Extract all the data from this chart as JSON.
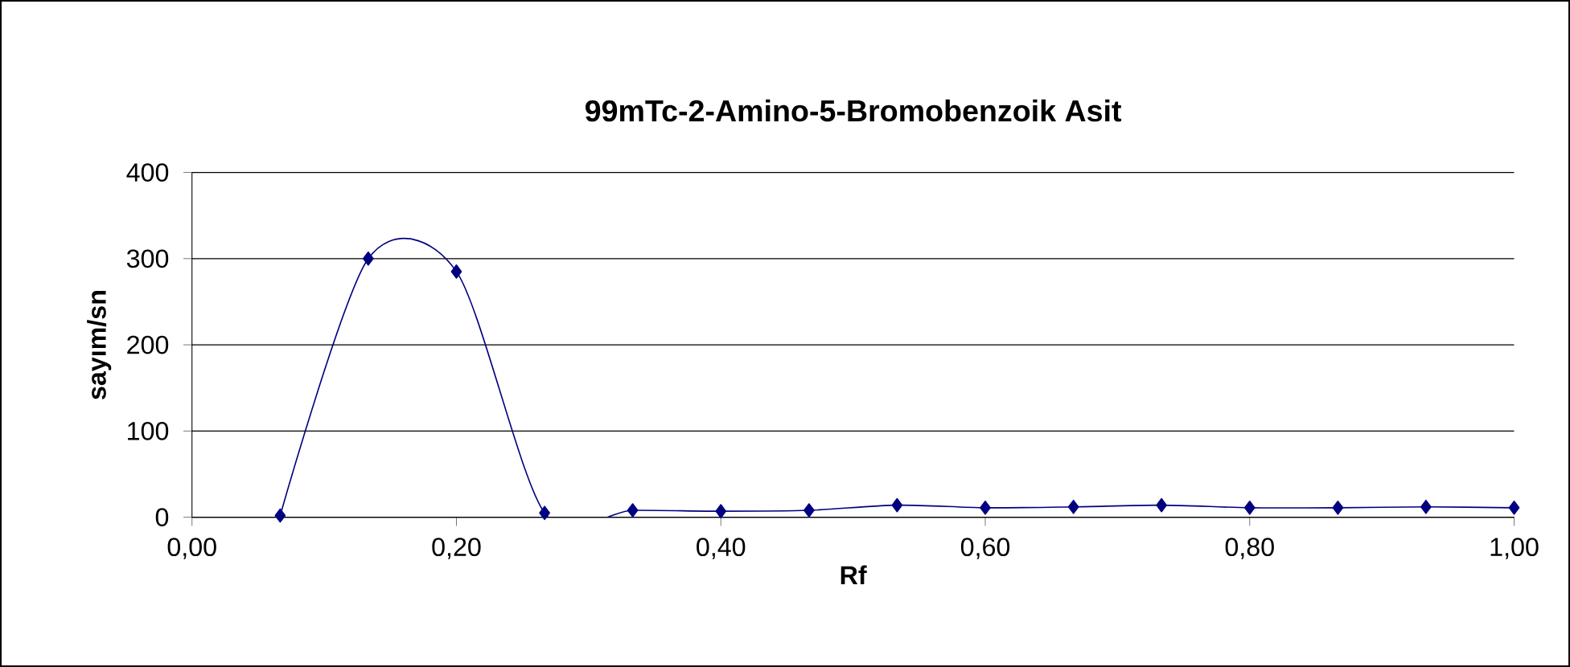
{
  "chart_data": {
    "type": "line",
    "title": "99mTc-2-Amino-5-Bromobenzoik Asit",
    "xlabel": "Rf",
    "ylabel": "sayım/sn",
    "x": [
      0.0667,
      0.1333,
      0.2,
      0.2667,
      0.3333,
      0.4,
      0.4667,
      0.5333,
      0.6,
      0.6667,
      0.7333,
      0.8,
      0.8667,
      0.9333,
      1.0
    ],
    "series": [
      {
        "color": "#000080",
        "values": [
          2,
          300,
          285,
          5,
          8,
          7,
          8,
          14,
          11,
          12,
          14,
          11,
          11,
          12,
          11
        ]
      }
    ],
    "xlim": [
      0,
      1
    ],
    "xticks": [
      {
        "value": 0,
        "label": "0,00"
      },
      {
        "value": 0.2,
        "label": "0,20"
      },
      {
        "value": 0.4,
        "label": "0,40"
      },
      {
        "value": 0.6,
        "label": "0,60"
      },
      {
        "value": 0.8,
        "label": "0,80"
      },
      {
        "value": 1,
        "label": "1,00"
      }
    ],
    "ylim": [
      0,
      400
    ],
    "yticks": [
      0,
      100,
      200,
      300,
      400
    ],
    "grid": "y",
    "marker": "diamond",
    "line_style": "solid"
  }
}
